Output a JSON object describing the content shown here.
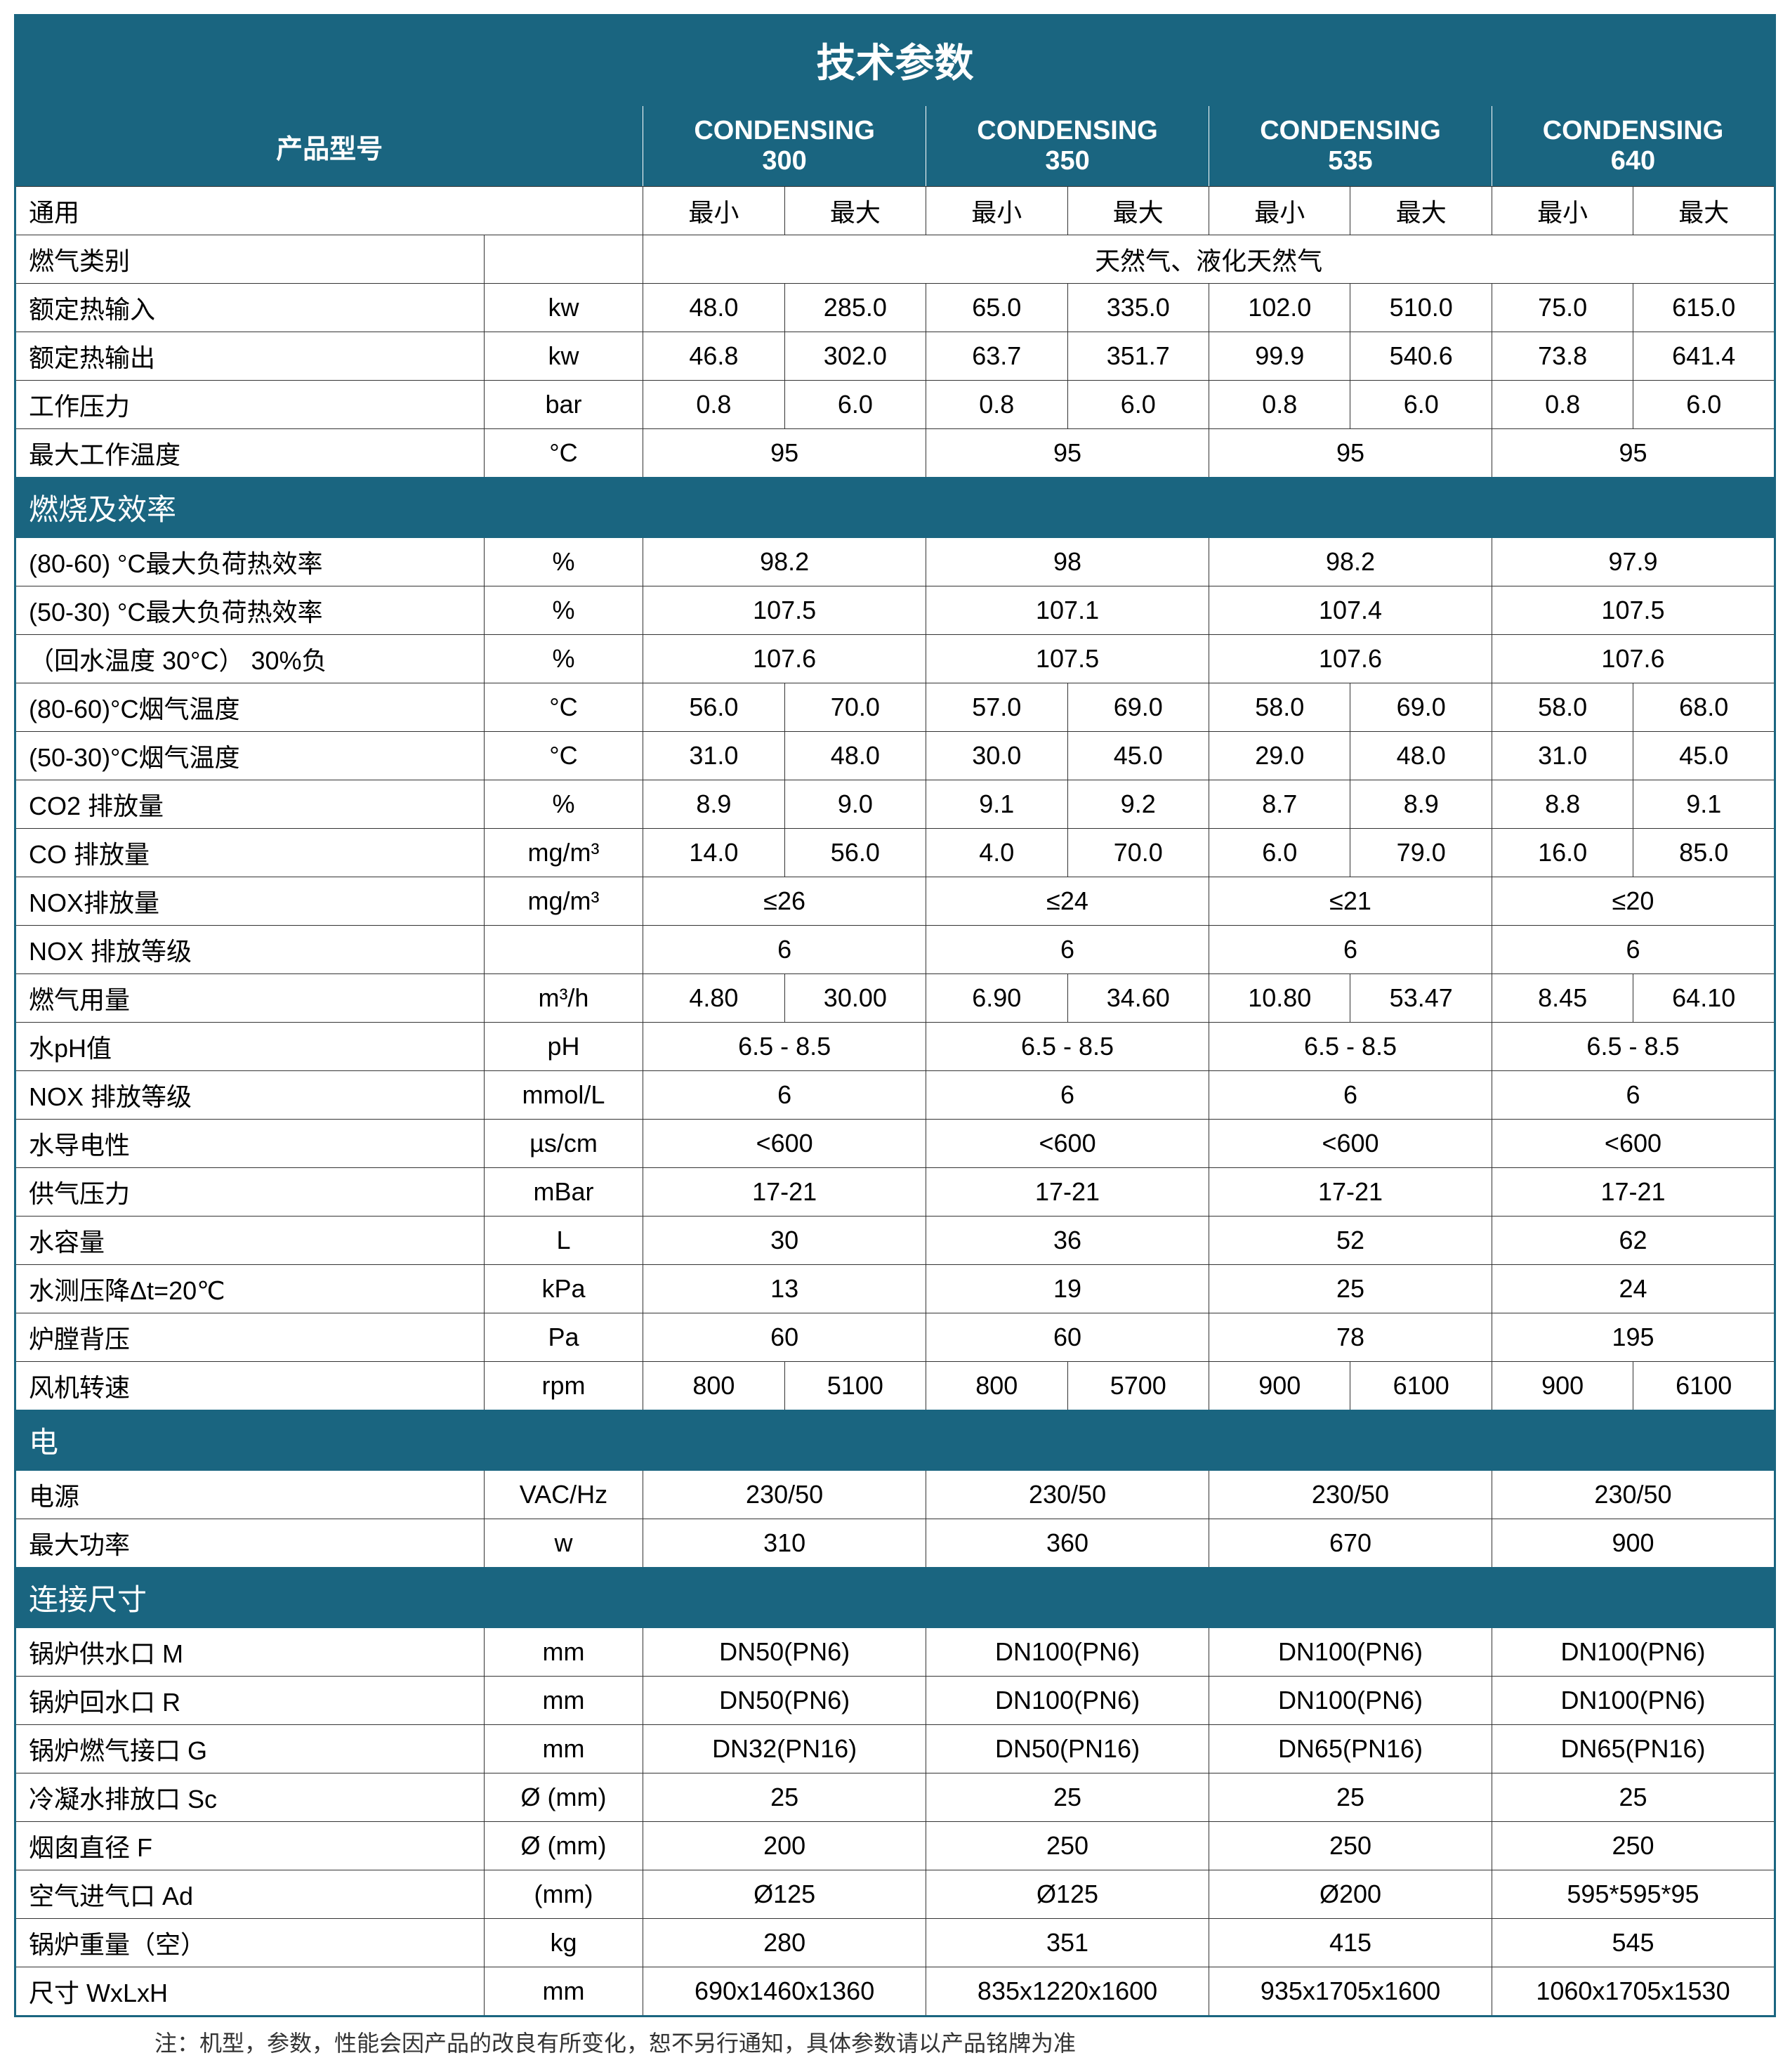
{
  "title": "技术参数",
  "product_label": "产品型号",
  "models": [
    "CONDENSING 300",
    "CONDENSING 350",
    "CONDENSING 535",
    "CONDENSING 640"
  ],
  "general_label": "通用",
  "min_label": "最小",
  "max_label": "最大",
  "gas_type_label": "燃气类别",
  "gas_type_value": "天然气、液化天然气",
  "rows_top": [
    {
      "label": "额定热输入",
      "unit": "kw",
      "vals": [
        "48.0",
        "285.0",
        "65.0",
        "335.0",
        "102.0",
        "510.0",
        "75.0",
        "615.0"
      ]
    },
    {
      "label": "额定热输出",
      "unit": "kw",
      "vals": [
        "46.8",
        "302.0",
        "63.7",
        "351.7",
        "99.9",
        "540.6",
        "73.8",
        "641.4"
      ]
    },
    {
      "label": "工作压力",
      "unit": "bar",
      "vals": [
        "0.8",
        "6.0",
        "0.8",
        "6.0",
        "0.8",
        "6.0",
        "0.8",
        "6.0"
      ]
    }
  ],
  "max_temp": {
    "label": "最大工作温度",
    "unit": "°C",
    "vals": [
      "95",
      "95",
      "95",
      "95"
    ]
  },
  "section_combustion": "燃烧及效率",
  "rows_comb_span": [
    {
      "label": "(80-60) °C最大负荷热效率",
      "unit": "%",
      "vals": [
        "98.2",
        "98",
        "98.2",
        "97.9"
      ]
    },
    {
      "label": "(50-30) °C最大负荷热效率",
      "unit": "%",
      "vals": [
        "107.5",
        "107.1",
        "107.4",
        "107.5"
      ]
    },
    {
      "label": "（回水温度 30°C） 30%负",
      "unit": "%",
      "vals": [
        "107.6",
        "107.5",
        "107.6",
        "107.6"
      ]
    }
  ],
  "rows_comb_split": [
    {
      "label": "(80-60)°C烟气温度",
      "unit": "°C",
      "vals": [
        "56.0",
        "70.0",
        "57.0",
        "69.0",
        "58.0",
        "69.0",
        "58.0",
        "68.0"
      ]
    },
    {
      "label": "(50-30)°C烟气温度",
      "unit": "°C",
      "vals": [
        "31.0",
        "48.0",
        "30.0",
        "45.0",
        "29.0",
        "48.0",
        "31.0",
        "45.0"
      ]
    },
    {
      "label": "CO2 排放量",
      "unit": "%",
      "vals": [
        "8.9",
        "9.0",
        "9.1",
        "9.2",
        "8.7",
        "8.9",
        "8.8",
        "9.1"
      ]
    },
    {
      "label": "CO 排放量",
      "unit": "mg/m³",
      "vals": [
        "14.0",
        "56.0",
        "4.0",
        "70.0",
        "6.0",
        "79.0",
        "16.0",
        "85.0"
      ]
    }
  ],
  "nox_emission": {
    "label": "NOX排放量",
    "unit": "mg/m³",
    "vals": [
      "≤26",
      "≤24",
      "≤21",
      "≤20"
    ]
  },
  "nox_class": {
    "label": "NOX 排放等级",
    "unit": "",
    "vals": [
      "6",
      "6",
      "6",
      "6"
    ]
  },
  "gas_usage": {
    "label": "燃气用量",
    "unit": "m³/h",
    "vals": [
      "4.80",
      "30.00",
      "6.90",
      "34.60",
      "10.80",
      "53.47",
      "8.45",
      "64.10"
    ]
  },
  "rows_comb_span2": [
    {
      "label": "水pH值",
      "unit": "pH",
      "vals": [
        "6.5 - 8.5",
        "6.5 - 8.5",
        "6.5 - 8.5",
        "6.5 - 8.5"
      ]
    },
    {
      "label": "NOX 排放等级",
      "unit": "mmol/L",
      "vals": [
        "6",
        "6",
        "6",
        "6"
      ]
    },
    {
      "label": "水导电性",
      "unit": "µs/cm",
      "vals": [
        "<600",
        "<600",
        "<600",
        "<600"
      ]
    },
    {
      "label": "供气压力",
      "unit": "mBar",
      "vals": [
        "17-21",
        "17-21",
        "17-21",
        "17-21"
      ]
    },
    {
      "label": "水容量",
      "unit": "L",
      "vals": [
        "30",
        "36",
        "52",
        "62"
      ]
    },
    {
      "label": "水测压降Δt=20℃",
      "unit": "kPa",
      "vals": [
        "13",
        "19",
        "25",
        "24"
      ]
    },
    {
      "label": "炉膛背压",
      "unit": "Pa",
      "vals": [
        "60",
        "60",
        "78",
        "195"
      ]
    }
  ],
  "fan_speed": {
    "label": "风机转速",
    "unit": "rpm",
    "vals": [
      "800",
      "5100",
      "800",
      "5700",
      "900",
      "6100",
      "900",
      "6100"
    ]
  },
  "section_elec": "电",
  "rows_elec": [
    {
      "label": "电源",
      "unit": "VAC/Hz",
      "vals": [
        "230/50",
        "230/50",
        "230/50",
        "230/50"
      ]
    },
    {
      "label": "最大功率",
      "unit": "w",
      "vals": [
        "310",
        "360",
        "670",
        "900"
      ]
    }
  ],
  "section_conn": "连接尺寸",
  "rows_conn": [
    {
      "label": "锅炉供水口  M",
      "unit": "mm",
      "vals": [
        "DN50(PN6)",
        "DN100(PN6)",
        "DN100(PN6)",
        "DN100(PN6)"
      ]
    },
    {
      "label": "锅炉回水口  R",
      "unit": "mm",
      "vals": [
        "DN50(PN6)",
        "DN100(PN6)",
        "DN100(PN6)",
        "DN100(PN6)"
      ]
    },
    {
      "label": "锅炉燃气接口  G",
      "unit": "mm",
      "vals": [
        "DN32(PN16)",
        "DN50(PN16)",
        "DN65(PN16)",
        "DN65(PN16)"
      ]
    },
    {
      "label": "冷凝水排放口  Sc",
      "unit": "Ø (mm)",
      "vals": [
        "25",
        "25",
        "25",
        "25"
      ]
    },
    {
      "label": "烟囱直径  F",
      "unit": "Ø (mm)",
      "vals": [
        "200",
        "250",
        "250",
        "250"
      ]
    },
    {
      "label": "空气进气口  Ad",
      "unit": "(mm)",
      "vals": [
        "Ø125",
        "Ø125",
        "Ø200",
        "595*595*95"
      ]
    },
    {
      "label": "锅炉重量（空）",
      "unit": "kg",
      "vals": [
        "280",
        "351",
        "415",
        "545"
      ]
    },
    {
      "label": "尺寸 WxLxH",
      "unit": "mm",
      "vals": [
        "690x1460x1360",
        "835x1220x1600",
        "935x1705x1600",
        "1060x1705x1530"
      ]
    }
  ],
  "footnote": "注：机型，参数，性能会因产品的改良有所变化，恕不另行通知，具体参数请以产品铭牌为准",
  "colors": {
    "header_bg": "#1a6580",
    "header_fg": "#ffffff",
    "border": "#333333"
  }
}
